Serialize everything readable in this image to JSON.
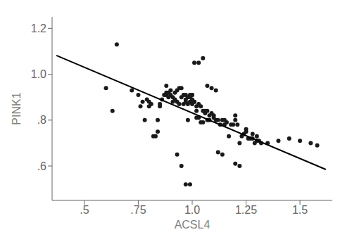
{
  "chart_data": {
    "type": "scatter",
    "xlabel": "ACSL4",
    "ylabel": "PINK1",
    "xlim": [
      0.35,
      1.65
    ],
    "ylim": [
      0.45,
      1.25
    ],
    "xticks": [
      {
        "value": 0.5,
        "label": ".5"
      },
      {
        "value": 0.75,
        "label": ".75"
      },
      {
        "value": 1.0,
        "label": "1.0"
      },
      {
        "value": 1.25,
        "label": "1.25"
      },
      {
        "value": 1.5,
        "label": "1.5"
      }
    ],
    "yticks": [
      {
        "value": 0.6,
        "label": ".6"
      },
      {
        "value": 0.8,
        "label": ".8"
      },
      {
        "value": 1.0,
        "label": "1.0"
      },
      {
        "value": 1.2,
        "label": "1.2"
      }
    ],
    "grid": false,
    "series": [
      {
        "type": "scatter",
        "color": "#1a1a1a",
        "x": [
          0.6,
          0.63,
          0.72,
          0.75,
          0.76,
          0.77,
          0.78,
          0.79,
          0.8,
          0.8,
          0.81,
          0.82,
          0.83,
          0.84,
          0.84,
          0.85,
          0.85,
          0.86,
          0.87,
          0.88,
          0.88,
          0.89,
          0.89,
          0.9,
          0.9,
          0.91,
          0.91,
          0.92,
          0.92,
          0.93,
          0.93,
          0.94,
          0.94,
          0.95,
          0.95,
          0.96,
          0.96,
          0.97,
          0.97,
          0.97,
          0.98,
          0.98,
          0.98,
          0.99,
          0.99,
          0.99,
          1.0,
          1.0,
          1.0,
          1.0,
          1.0,
          1.01,
          1.01,
          1.02,
          1.02,
          1.02,
          1.03,
          1.03,
          1.04,
          1.04,
          1.05,
          1.05,
          1.06,
          1.06,
          1.07,
          1.07,
          1.08,
          1.08,
          1.09,
          1.1,
          1.1,
          1.11,
          1.12,
          1.13,
          1.14,
          1.15,
          1.15,
          1.16,
          1.17,
          1.18,
          1.19,
          1.2,
          1.2,
          1.21,
          1.22,
          1.23,
          1.24,
          1.25,
          1.25,
          1.26,
          1.27,
          1.28,
          1.28,
          1.29,
          1.3,
          1.3,
          1.31,
          1.32,
          1.35,
          1.4,
          1.45,
          1.5,
          1.55,
          1.58,
          1.2,
          1.22,
          0.65,
          0.88,
          1.12,
          1.14,
          0.93,
          0.95,
          0.97,
          0.99,
          1.01,
          1.03,
          1.05,
          1.07,
          1.09,
          1.11
        ],
        "values": [
          0.94,
          0.84,
          0.93,
          0.91,
          0.86,
          0.88,
          0.8,
          0.89,
          0.86,
          0.88,
          0.87,
          0.73,
          0.73,
          0.8,
          0.75,
          0.87,
          0.86,
          0.89,
          0.91,
          0.92,
          0.91,
          0.9,
          0.92,
          0.93,
          0.91,
          0.9,
          0.88,
          0.89,
          0.92,
          0.93,
          0.88,
          0.94,
          0.87,
          0.94,
          0.9,
          0.87,
          0.91,
          0.91,
          0.89,
          0.88,
          0.8,
          0.87,
          0.9,
          0.88,
          0.9,
          0.91,
          0.88,
          0.91,
          0.87,
          0.89,
          0.91,
          0.88,
          0.88,
          0.86,
          0.81,
          0.84,
          0.81,
          0.87,
          0.79,
          0.86,
          0.79,
          0.84,
          0.83,
          0.84,
          0.8,
          0.84,
          0.8,
          0.82,
          0.83,
          0.81,
          0.82,
          0.8,
          0.8,
          0.78,
          0.8,
          0.78,
          0.8,
          0.79,
          0.73,
          0.78,
          0.78,
          0.8,
          0.82,
          0.78,
          0.7,
          0.73,
          0.74,
          0.75,
          0.76,
          0.72,
          0.72,
          0.74,
          0.72,
          0.7,
          0.71,
          0.73,
          0.71,
          0.7,
          0.7,
          0.71,
          0.72,
          0.71,
          0.7,
          0.69,
          0.61,
          0.6,
          1.13,
          0.95,
          0.66,
          0.65,
          0.65,
          0.6,
          0.52,
          0.52,
          1.05,
          1.05,
          1.07,
          0.95,
          0.94,
          0.93
        ]
      },
      {
        "type": "line",
        "color": "#000000",
        "x": [
          0.37,
          1.62
        ],
        "values": [
          1.082,
          0.585
        ]
      }
    ]
  }
}
